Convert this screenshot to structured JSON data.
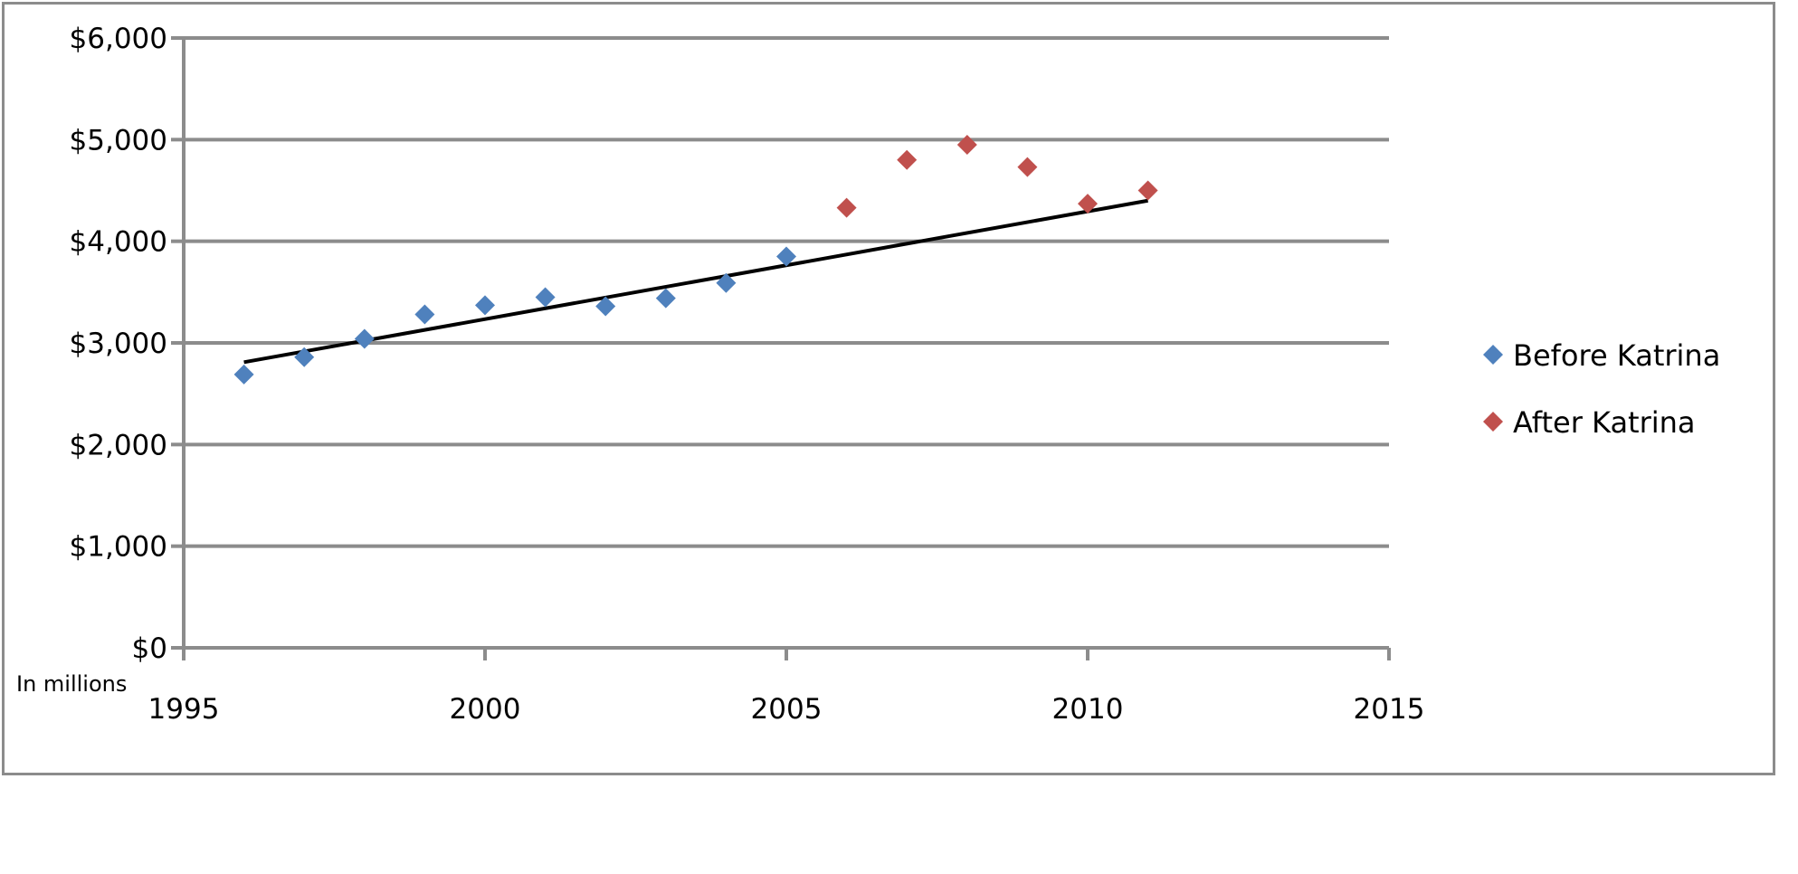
{
  "chart_data": {
    "type": "scatter",
    "title": "",
    "xlabel": "",
    "ylabel": "",
    "unit_note": "In millions",
    "xlim": [
      1995,
      2015
    ],
    "ylim": [
      0,
      6000
    ],
    "x_ticks": [
      1995,
      2000,
      2005,
      2010,
      2015
    ],
    "y_ticks": [
      0,
      1000,
      2000,
      3000,
      4000,
      5000,
      6000
    ],
    "y_tick_labels": [
      "$0",
      "$1,000",
      "$2,000",
      "$3,000",
      "$4,000",
      "$5,000",
      "$6,000"
    ],
    "grid": "horizontal",
    "legend_position": "right",
    "series": [
      {
        "name": "Before Katrina",
        "color": "#4f81bd",
        "marker": "diamond",
        "x": [
          1996,
          1997,
          1998,
          1999,
          2000,
          2001,
          2002,
          2003,
          2004,
          2005
        ],
        "y": [
          2690,
          2860,
          3040,
          3280,
          3370,
          3450,
          3360,
          3440,
          3590,
          3850
        ]
      },
      {
        "name": "After Katrina",
        "color": "#c0504d",
        "marker": "diamond",
        "x": [
          2006,
          2007,
          2008,
          2009,
          2010,
          2011
        ],
        "y": [
          4330,
          4800,
          4950,
          4730,
          4370,
          4500
        ]
      }
    ],
    "trendline": {
      "color": "#000000",
      "x": [
        1996,
        2011
      ],
      "y": [
        2810,
        4400
      ]
    }
  }
}
